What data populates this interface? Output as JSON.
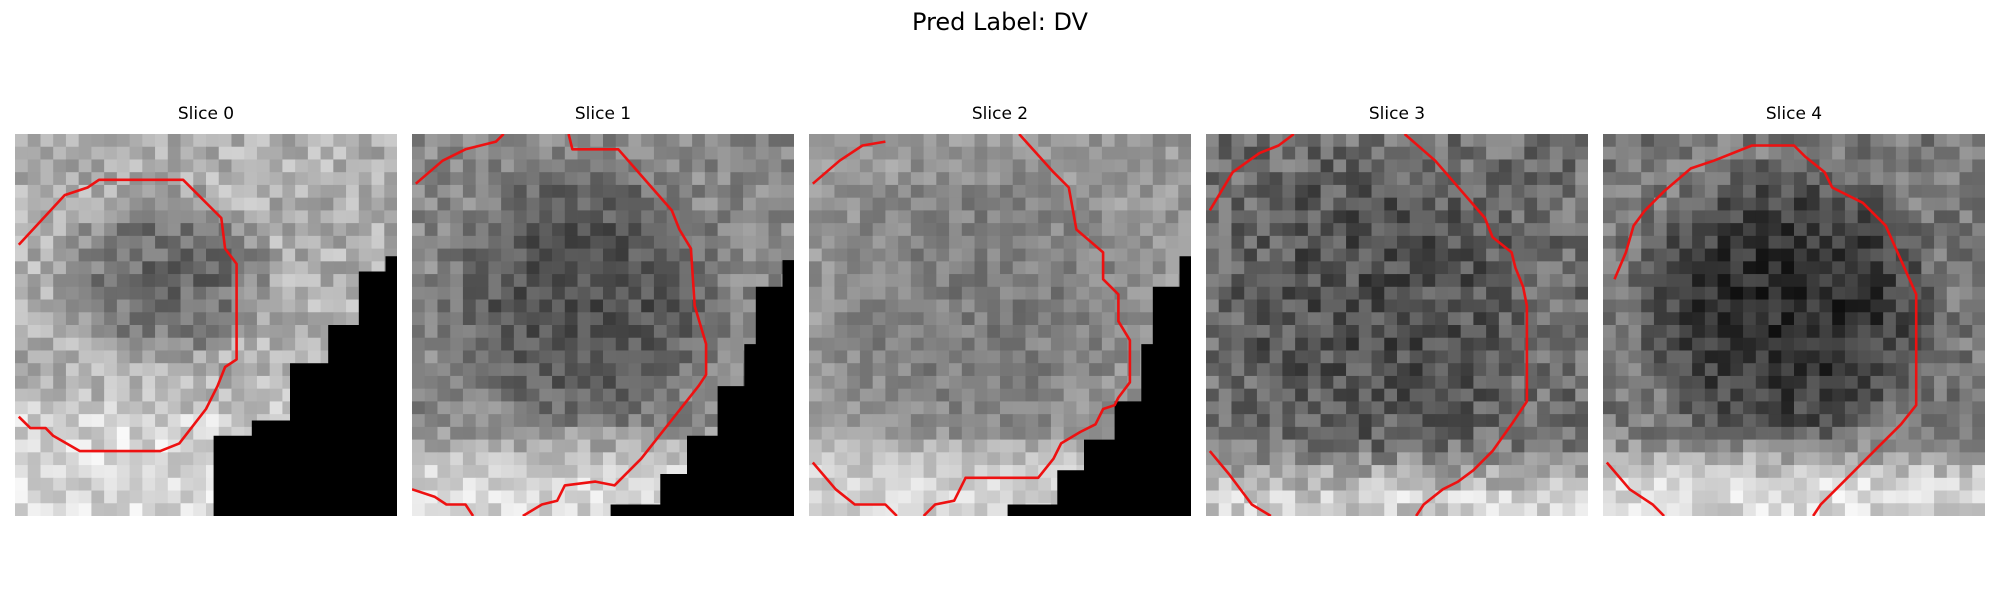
{
  "figure": {
    "title": "Pred Label: DV"
  },
  "panels": [
    {
      "title": "Slice 0"
    },
    {
      "title": "Slice 1"
    },
    {
      "title": "Slice 2"
    },
    {
      "title": "Slice 3"
    },
    {
      "title": "Slice 4"
    }
  ],
  "colors": {
    "contour": "#ee1111",
    "mask": "#000000"
  }
}
